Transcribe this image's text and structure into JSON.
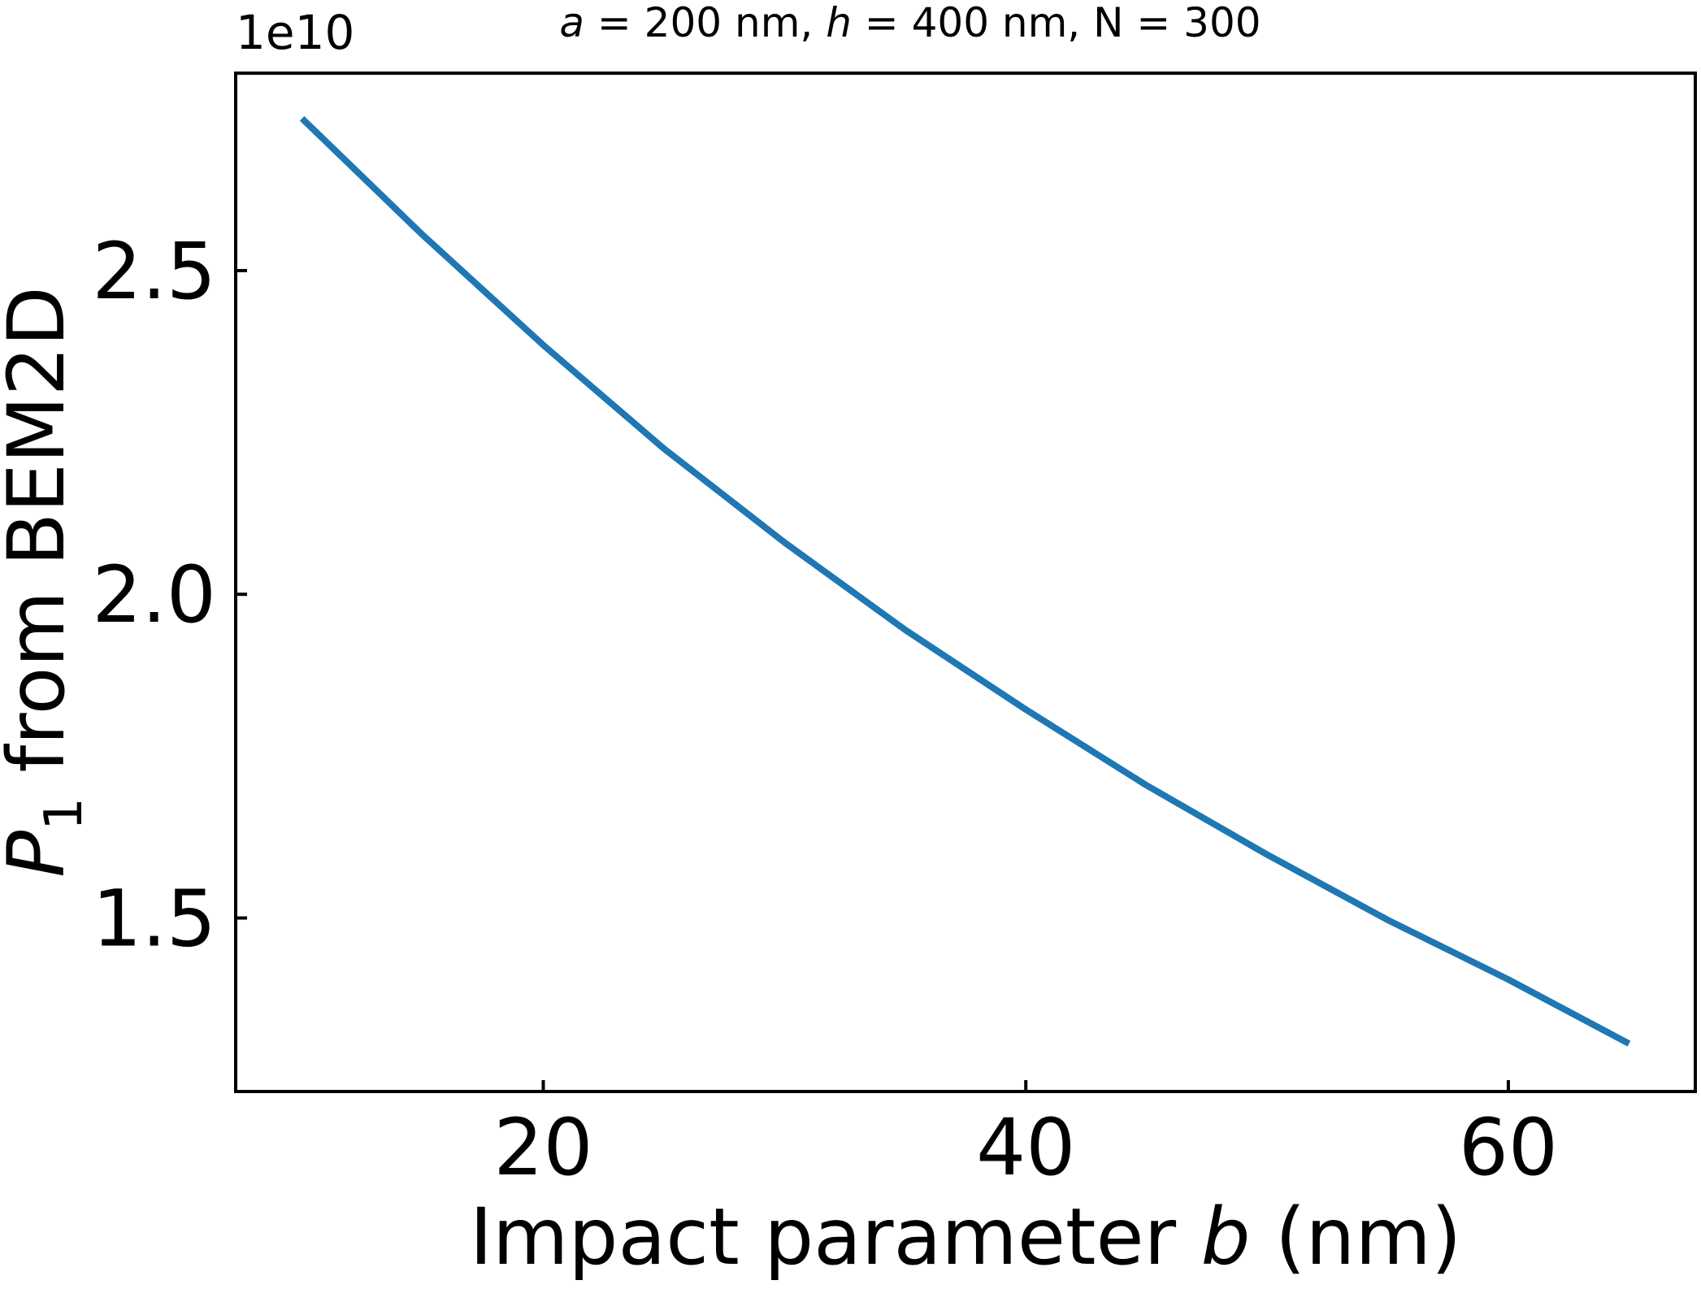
{
  "chart_data": {
    "type": "line",
    "title": {
      "a_symbol": "a",
      "a_value": " = 200 nm, ",
      "h_symbol": "h",
      "h_value": " = 400 nm, N = 300"
    },
    "xlabel": {
      "prefix": "Impact parameter ",
      "symbol": "b",
      "suffix": " (nm)"
    },
    "ylabel": {
      "symbol": "P",
      "subscript": "1",
      "suffix": " from BEM2D"
    },
    "y_offset_text": "1e10",
    "x_ticks": [
      {
        "value": 20,
        "label": "20"
      },
      {
        "value": 40,
        "label": "40"
      },
      {
        "value": 60,
        "label": "60"
      }
    ],
    "y_ticks": [
      {
        "value": 1.5,
        "label": "1.5"
      },
      {
        "value": 2.0,
        "label": "2.0"
      },
      {
        "value": 2.5,
        "label": "2.5"
      }
    ],
    "xlim": [
      7.25,
      67.75
    ],
    "ylim": [
      1.232,
      2.805
    ],
    "grid": false,
    "series": [
      {
        "color": "#1f77b4",
        "x": [
          10,
          15,
          20,
          25,
          30,
          35,
          40,
          45,
          50,
          55,
          60,
          65
        ],
        "y": [
          2.735,
          2.555,
          2.385,
          2.225,
          2.08,
          1.945,
          1.822,
          1.705,
          1.598,
          1.497,
          1.405,
          1.306
        ]
      }
    ]
  }
}
